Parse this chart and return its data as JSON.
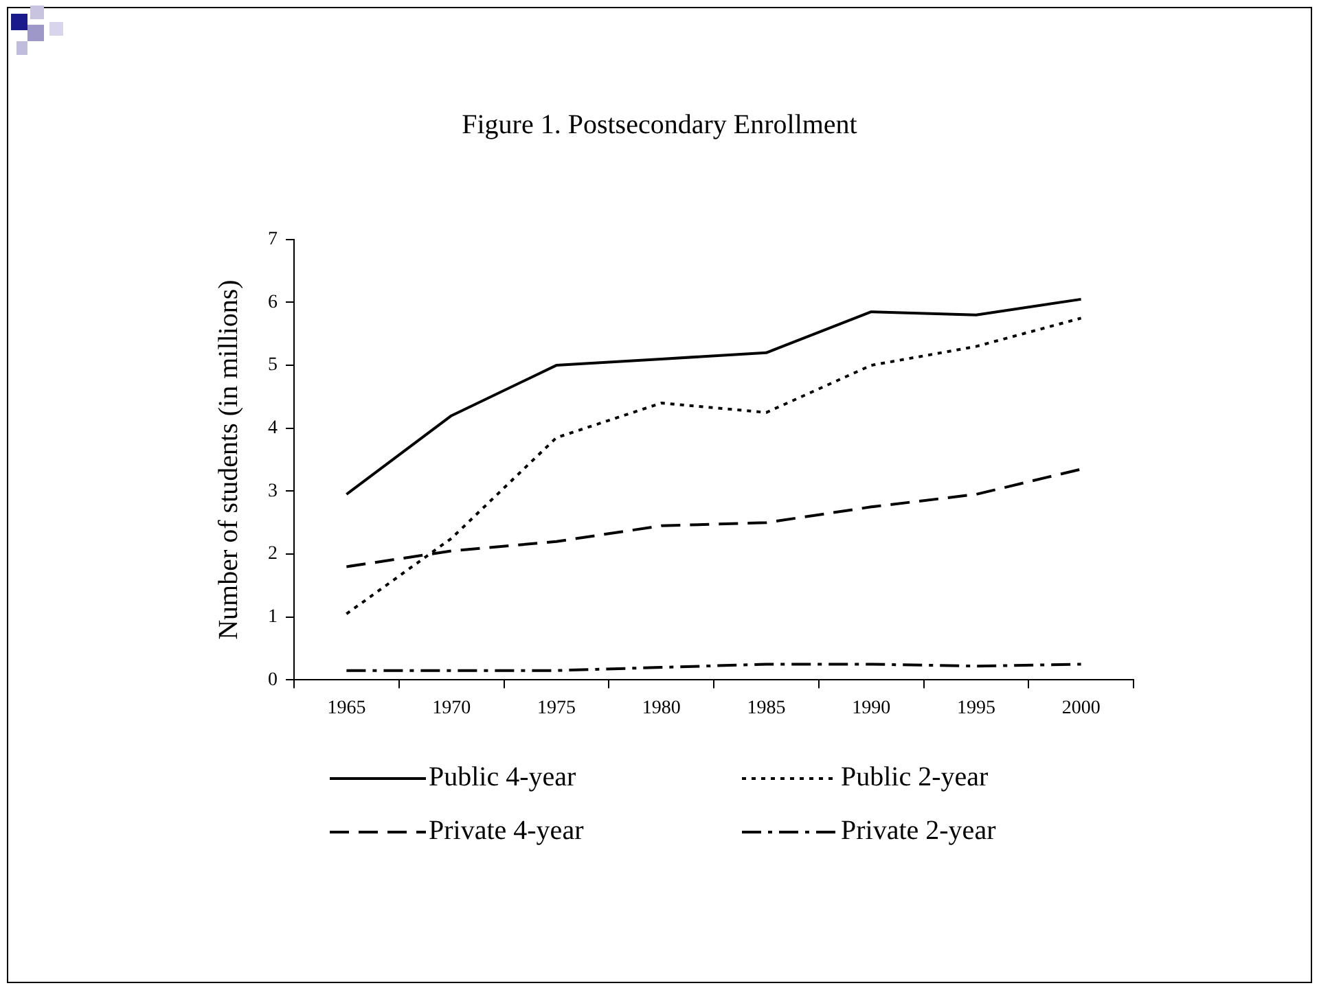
{
  "chart_data": {
    "type": "line",
    "title": "Figure 1. Postsecondary Enrollment",
    "ylabel": "Number of students (in millions)",
    "categories": [
      "1965",
      "1970",
      "1975",
      "1980",
      "1985",
      "1990",
      "1995",
      "2000"
    ],
    "ylim": [
      0,
      7
    ],
    "yticks": [
      0,
      1,
      2,
      3,
      4,
      5,
      6,
      7
    ],
    "grid": false,
    "legend": "bottom",
    "marker": "none",
    "series": [
      {
        "name": "Public 4-year",
        "color": "#000000",
        "line_style": "solid",
        "values": [
          2.95,
          4.2,
          5.0,
          5.1,
          5.2,
          5.85,
          5.8,
          6.05
        ]
      },
      {
        "name": "Public 2-year",
        "color": "#000000",
        "line_style": "dotted",
        "values": [
          1.05,
          2.25,
          3.85,
          4.4,
          4.25,
          5.0,
          5.3,
          5.75
        ]
      },
      {
        "name": "Private 4-year",
        "color": "#000000",
        "line_style": "dashed",
        "values": [
          1.8,
          2.05,
          2.2,
          2.45,
          2.5,
          2.75,
          2.95,
          3.35
        ]
      },
      {
        "name": "Private 2-year",
        "color": "#000000",
        "line_style": "dashdot",
        "values": [
          0.15,
          0.15,
          0.15,
          0.2,
          0.25,
          0.25,
          0.22,
          0.25
        ]
      }
    ]
  }
}
